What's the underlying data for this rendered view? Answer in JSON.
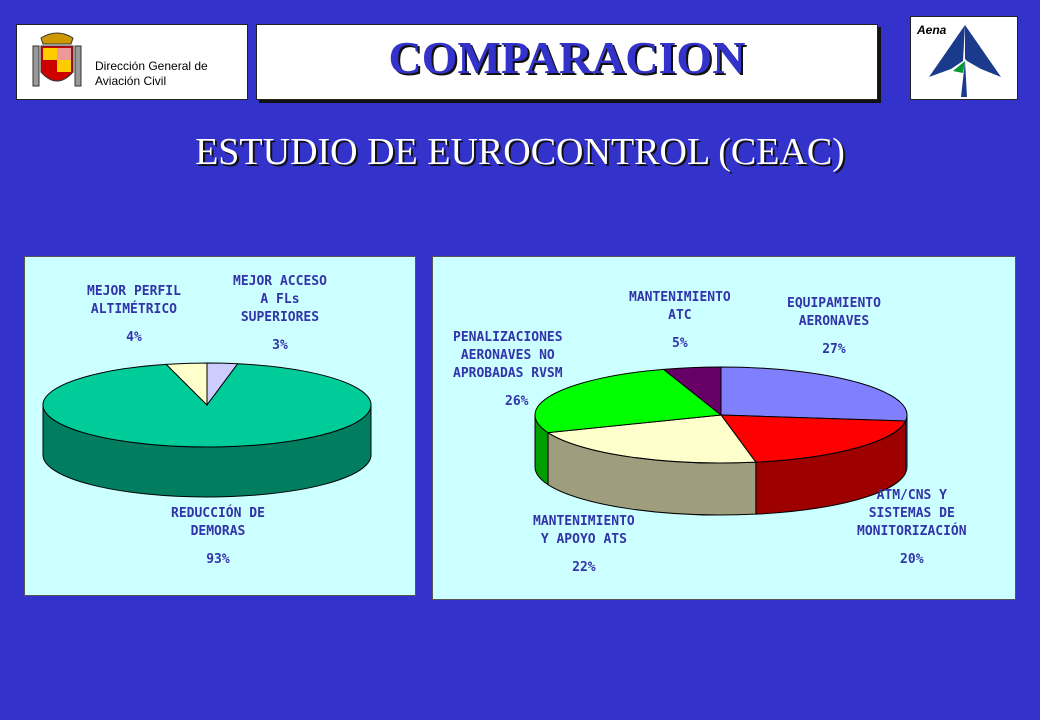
{
  "header": {
    "org_name_line1": "Dirección General de",
    "org_name_line2": "Aviación Civil",
    "title": "COMPARACION",
    "brand": "Aena"
  },
  "subtitle": "ESTUDIO DE EUROCONTROL (CEAC)",
  "colors": {
    "background": "#3333cc",
    "panel": "#ccffff",
    "label_text": "#3333aa"
  },
  "chart_data": [
    {
      "type": "pie",
      "slices": [
        {
          "label_lines": [
            "MEJOR ACCESO",
            "A FLs",
            "SUPERIORES"
          ],
          "value": 3,
          "value_label": "3%",
          "color": "#ccccff"
        },
        {
          "label_lines": [
            "REDUCCIÓN DE",
            "DEMORAS"
          ],
          "value": 93,
          "value_label": "93%",
          "color": "#00cc99"
        },
        {
          "label_lines": [
            "MEJOR PERFIL",
            "ALTIMÉTRICO"
          ],
          "value": 4,
          "value_label": "4%",
          "color": "#ffffcc"
        }
      ]
    },
    {
      "type": "pie",
      "slices": [
        {
          "label_lines": [
            "EQUIPAMIENTO",
            "AERONAVES"
          ],
          "value": 27,
          "value_label": "27%",
          "color": "#8080ff"
        },
        {
          "label_lines": [
            "ATM/CNS Y",
            "SISTEMAS DE",
            "MONITORIZACIÓN"
          ],
          "value": 20,
          "value_label": "20%",
          "color": "#ff0000"
        },
        {
          "label_lines": [
            "MANTENIMIENTO",
            "Y APOYO ATS"
          ],
          "value": 22,
          "value_label": "22%",
          "color": "#ffffcc"
        },
        {
          "label_lines": [
            "PENALIZACIONES",
            "AERONAVES NO",
            "APROBADAS RVSM"
          ],
          "value": 26,
          "value_label": "26%",
          "color": "#00ff00"
        },
        {
          "label_lines": [
            "MANTENIMIENTO",
            "ATC"
          ],
          "value": 5,
          "value_label": "5%",
          "color": "#660066"
        }
      ]
    }
  ]
}
